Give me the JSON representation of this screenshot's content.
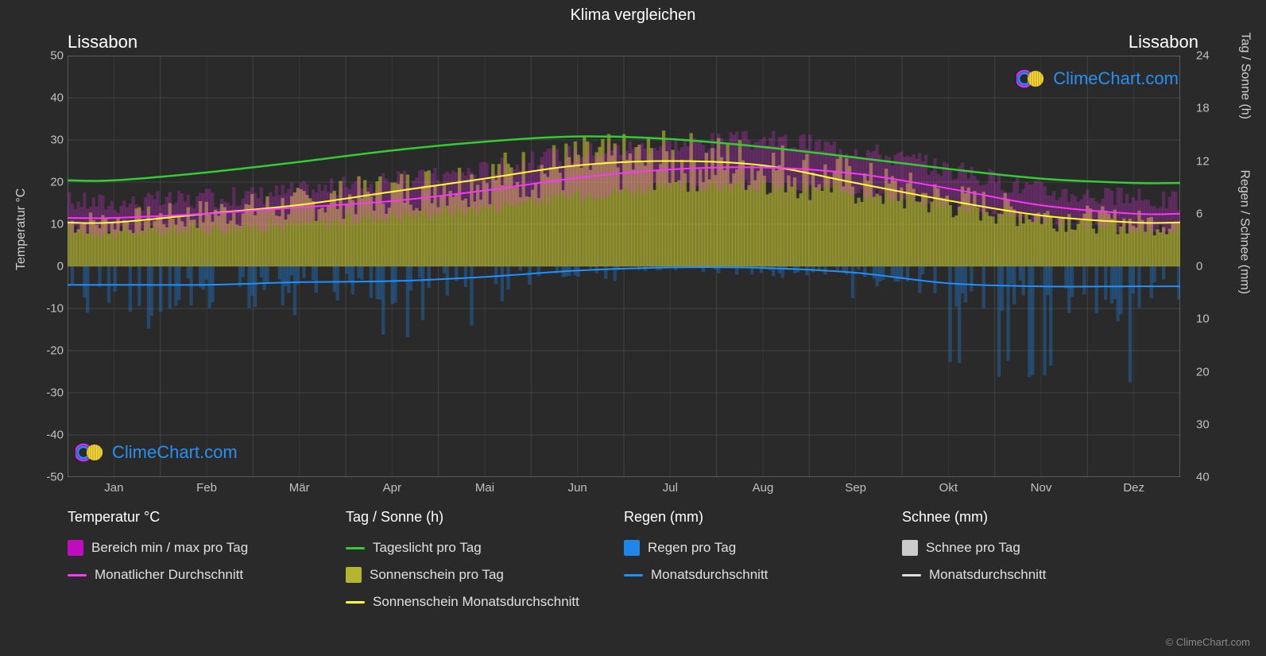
{
  "title": "Klima vergleichen",
  "location_left": "Lissabon",
  "location_right": "Lissabon",
  "watermark": "ClimeChart.com",
  "copyright": "© ClimeChart.com",
  "chart": {
    "type": "climate-composite",
    "background_color": "#2a2a2a",
    "grid_color": "#555555",
    "axis_left": {
      "label": "Temperatur °C",
      "min": -50,
      "max": 50,
      "step": 10,
      "ticks": [
        50,
        40,
        30,
        20,
        10,
        0,
        -10,
        -20,
        -30,
        -40,
        -50
      ]
    },
    "axis_right_sun": {
      "label": "Tag / Sonne (h)",
      "min": 0,
      "max": 24,
      "step": 6,
      "ticks": [
        24,
        18,
        12,
        6,
        0
      ]
    },
    "axis_right_rain": {
      "label": "Regen / Schnee (mm)",
      "min": 0,
      "max": 40,
      "step": 10,
      "ticks": [
        0,
        10,
        20,
        30,
        40
      ]
    },
    "months": [
      "Jan",
      "Feb",
      "Mär",
      "Apr",
      "Mai",
      "Jun",
      "Jul",
      "Aug",
      "Sep",
      "Okt",
      "Nov",
      "Dez"
    ],
    "series": {
      "daylight": {
        "color": "#33cc33",
        "width": 2.5,
        "values": [
          9.8,
          10.7,
          11.9,
          13.2,
          14.2,
          14.8,
          14.5,
          13.6,
          12.4,
          11.1,
          10.0,
          9.5
        ]
      },
      "sunshine_avg": {
        "color": "#ffff33",
        "width": 2,
        "values": [
          5.0,
          6.0,
          7.0,
          8.5,
          10.0,
          11.5,
          12.0,
          11.5,
          9.5,
          7.5,
          5.8,
          5.0
        ]
      },
      "temp_avg": {
        "color": "#ff33ff",
        "width": 2,
        "values": [
          11.5,
          12.5,
          14.0,
          15.5,
          18.0,
          21.0,
          23.0,
          23.5,
          22.0,
          18.5,
          14.5,
          12.5
        ]
      },
      "rain_avg": {
        "color": "#1e90ff",
        "width": 2,
        "values": [
          3.5,
          3.5,
          3.0,
          2.8,
          2.0,
          0.8,
          0.2,
          0.3,
          1.2,
          3.2,
          3.8,
          3.8
        ]
      },
      "temp_range_band": {
        "color": "#ff33ff",
        "opacity": 0.22,
        "min": [
          8,
          9,
          10,
          12,
          14,
          17,
          19,
          19,
          18,
          15,
          11,
          9
        ],
        "max": [
          15,
          16,
          18,
          20,
          23,
          27,
          29,
          30,
          28,
          23,
          18,
          16
        ]
      },
      "sunshine_daily_fill": {
        "color": "#cccc33",
        "opacity": 0.55,
        "values": [
          5.0,
          6.0,
          7.0,
          8.5,
          10.0,
          11.5,
          12.0,
          11.5,
          9.5,
          7.5,
          5.8,
          5.0
        ]
      },
      "rain_daily_spikes": {
        "color": "#1e90ff",
        "opacity": 0.3,
        "months_avg_mm": [
          3.5,
          3.5,
          3.0,
          2.8,
          2.0,
          0.8,
          0.2,
          0.3,
          1.2,
          3.2,
          3.8,
          3.8
        ],
        "max_spike_mm": 22
      }
    }
  },
  "legend": {
    "col1": {
      "header": "Temperatur °C",
      "items": [
        {
          "type": "box",
          "color": "#ff00ff",
          "opacity": 0.7,
          "label": "Bereich min / max pro Tag"
        },
        {
          "type": "line",
          "color": "#ff33ff",
          "label": "Monatlicher Durchschnitt"
        }
      ]
    },
    "col2": {
      "header": "Tag / Sonne (h)",
      "items": [
        {
          "type": "line",
          "color": "#33cc33",
          "label": "Tageslicht pro Tag"
        },
        {
          "type": "box",
          "color": "#cccc33",
          "opacity": 0.85,
          "label": "Sonnenschein pro Tag"
        },
        {
          "type": "line",
          "color": "#ffff33",
          "label": "Sonnenschein Monatsdurchschnitt"
        }
      ]
    },
    "col3": {
      "header": "Regen (mm)",
      "items": [
        {
          "type": "box",
          "color": "#1e90ff",
          "opacity": 0.9,
          "label": "Regen pro Tag"
        },
        {
          "type": "line",
          "color": "#1e90ff",
          "label": "Monatsdurchschnitt"
        }
      ]
    },
    "col4": {
      "header": "Schnee (mm)",
      "items": [
        {
          "type": "box",
          "color": "#dddddd",
          "opacity": 0.9,
          "label": "Schnee pro Tag"
        },
        {
          "type": "line",
          "color": "#dddddd",
          "label": "Monatsdurchschnitt"
        }
      ]
    }
  },
  "logo_colors": {
    "ring1": "#cc33ff",
    "ring2": "#1e90ff",
    "sun": "#ffdd33"
  }
}
